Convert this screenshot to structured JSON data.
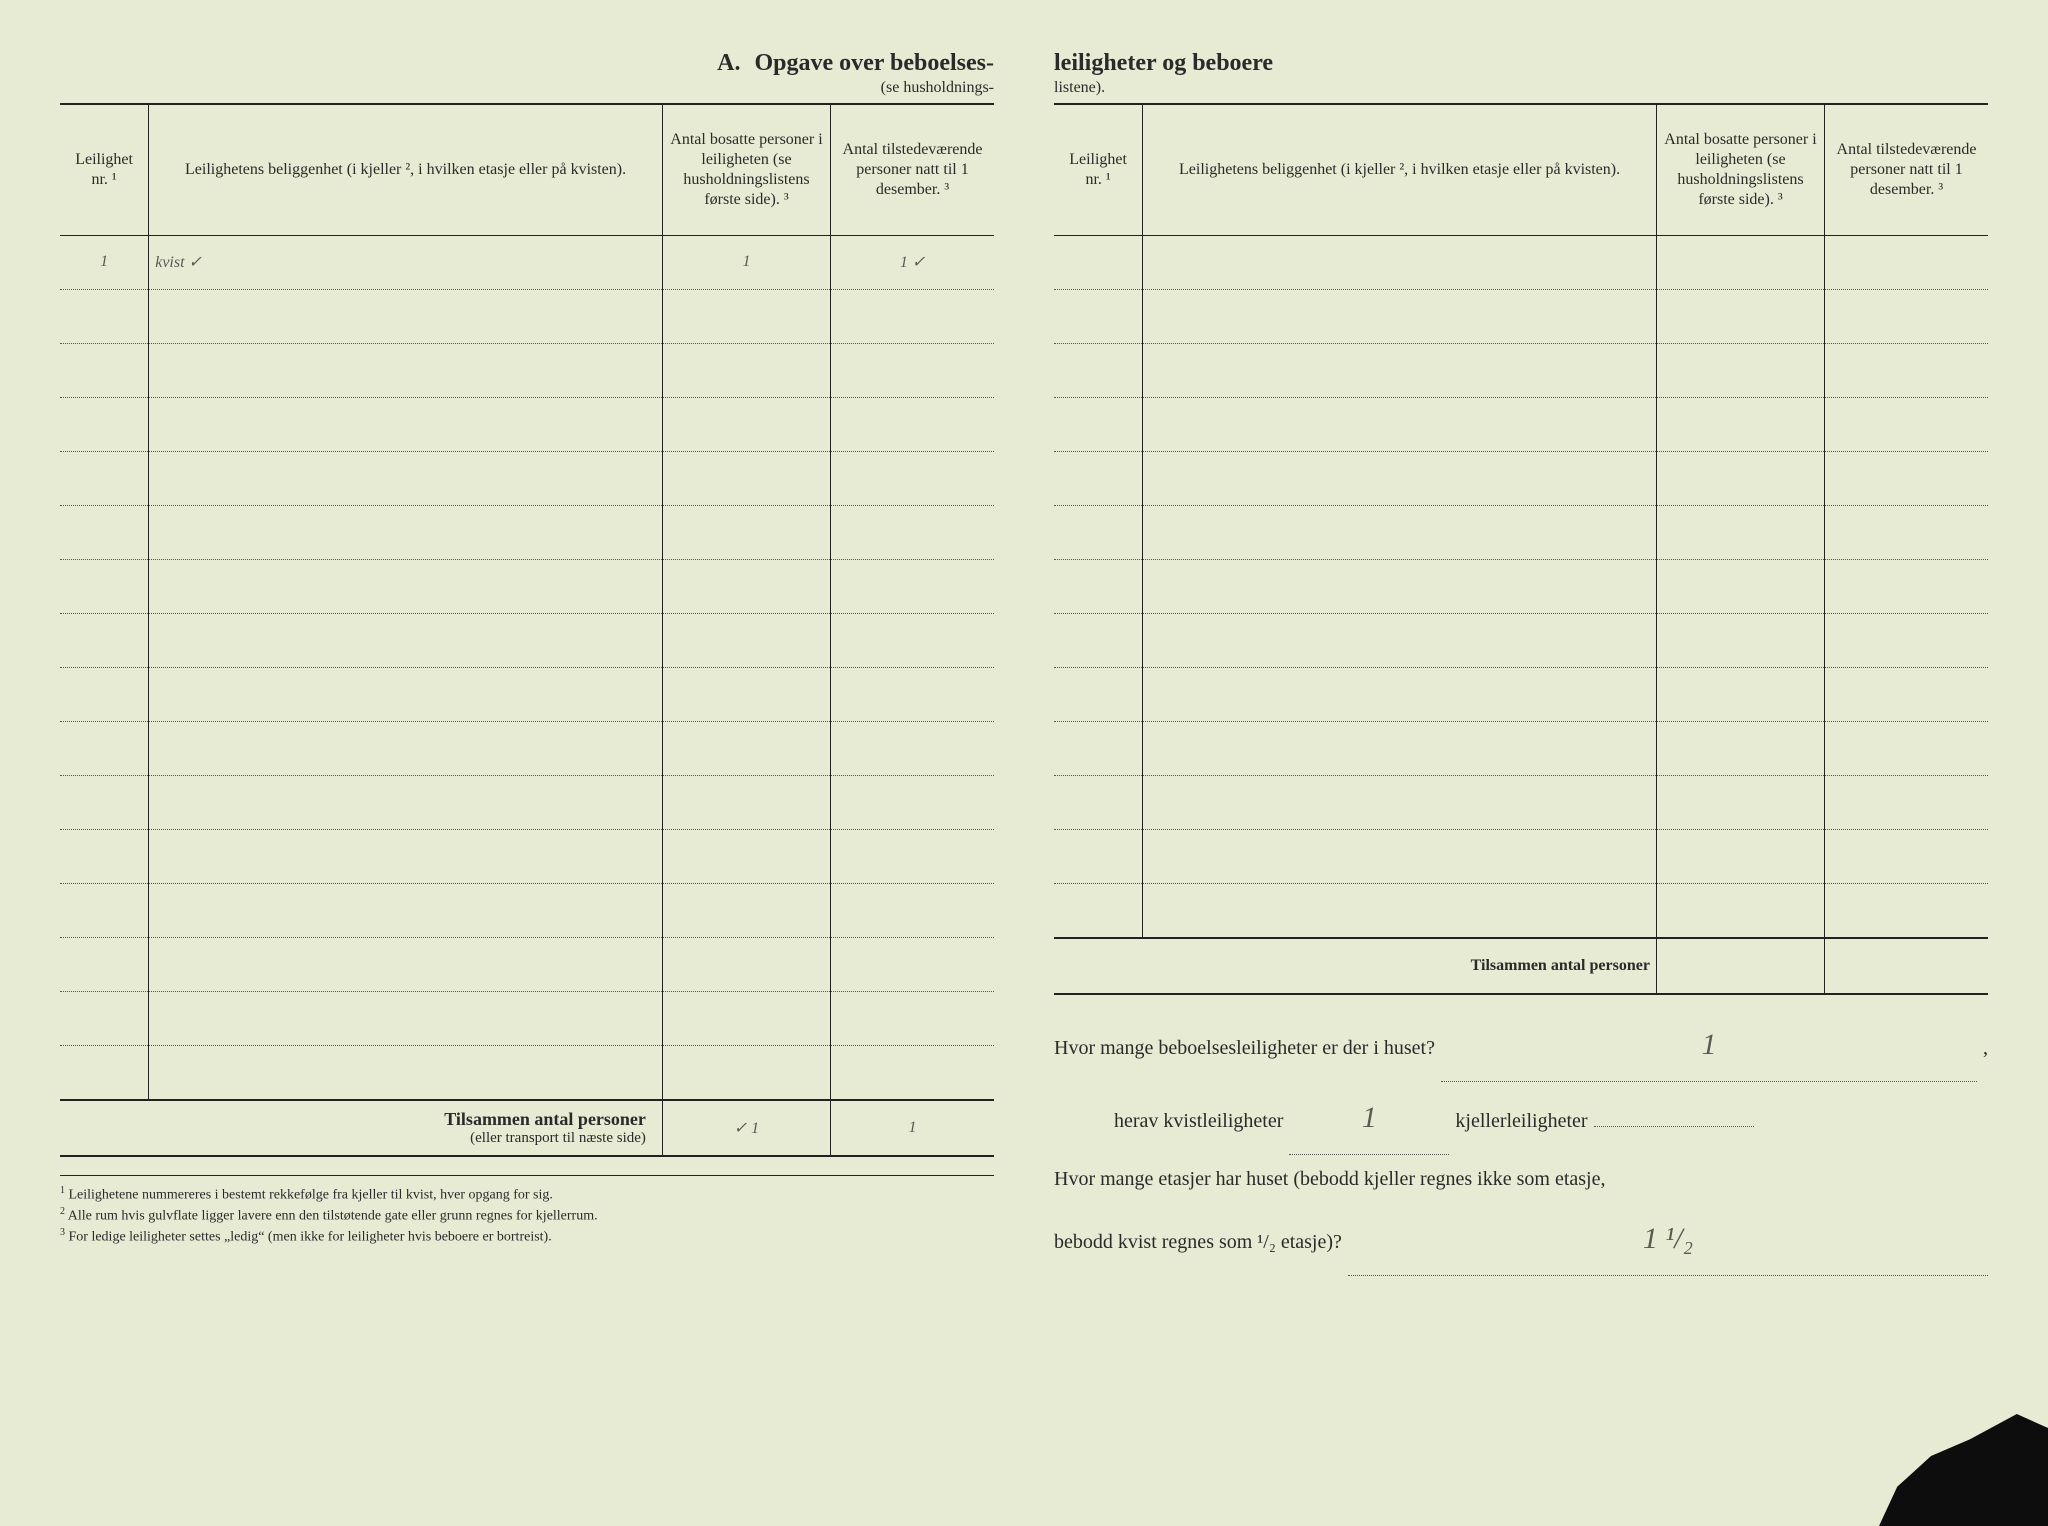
{
  "background_color": "#e8ebd4",
  "text_color": "#2a2a2a",
  "handwriting_color": "#5a5a52",
  "header": {
    "section_letter": "A.",
    "title_left": "Opgave over beboelses-",
    "title_right": "leiligheter og beboere",
    "subtitle_left": "(se husholdnings-",
    "subtitle_right": "listene)."
  },
  "columns": {
    "nr": "Leilighet nr. ¹",
    "loc": "Leilighetens beliggenhet (i kjeller ², i hvilken etasje eller på kvisten).",
    "a": "Antal bosatte personer i leiligheten (se husholdningslistens første side). ³",
    "b": "Antal tilstedeværende personer natt til 1 desember. ³"
  },
  "left_table": {
    "rows": [
      {
        "nr": "1",
        "loc": "kvist",
        "check": "✓",
        "a": "1",
        "b": "1 ✓"
      },
      {
        "nr": "",
        "loc": "",
        "check": "",
        "a": "",
        "b": ""
      },
      {
        "nr": "",
        "loc": "",
        "check": "",
        "a": "",
        "b": ""
      },
      {
        "nr": "",
        "loc": "",
        "check": "",
        "a": "",
        "b": ""
      },
      {
        "nr": "",
        "loc": "",
        "check": "",
        "a": "",
        "b": ""
      },
      {
        "nr": "",
        "loc": "",
        "check": "",
        "a": "",
        "b": ""
      },
      {
        "nr": "",
        "loc": "",
        "check": "",
        "a": "",
        "b": ""
      },
      {
        "nr": "",
        "loc": "",
        "check": "",
        "a": "",
        "b": ""
      },
      {
        "nr": "",
        "loc": "",
        "check": "",
        "a": "",
        "b": ""
      },
      {
        "nr": "",
        "loc": "",
        "check": "",
        "a": "",
        "b": ""
      },
      {
        "nr": "",
        "loc": "",
        "check": "",
        "a": "",
        "b": ""
      },
      {
        "nr": "",
        "loc": "",
        "check": "",
        "a": "",
        "b": ""
      },
      {
        "nr": "",
        "loc": "",
        "check": "",
        "a": "",
        "b": ""
      },
      {
        "nr": "",
        "loc": "",
        "check": "",
        "a": "",
        "b": ""
      },
      {
        "nr": "",
        "loc": "",
        "check": "",
        "a": "",
        "b": ""
      },
      {
        "nr": "",
        "loc": "",
        "check": "",
        "a": "",
        "b": ""
      }
    ],
    "total_label": "Tilsammen antal personer",
    "total_sublabel": "(eller transport til næste side)",
    "total_check": "✓",
    "total_a": "1",
    "total_b": "1"
  },
  "right_table": {
    "rows": [
      {
        "nr": "",
        "loc": "",
        "a": "",
        "b": ""
      },
      {
        "nr": "",
        "loc": "",
        "a": "",
        "b": ""
      },
      {
        "nr": "",
        "loc": "",
        "a": "",
        "b": ""
      },
      {
        "nr": "",
        "loc": "",
        "a": "",
        "b": ""
      },
      {
        "nr": "",
        "loc": "",
        "a": "",
        "b": ""
      },
      {
        "nr": "",
        "loc": "",
        "a": "",
        "b": ""
      },
      {
        "nr": "",
        "loc": "",
        "a": "",
        "b": ""
      },
      {
        "nr": "",
        "loc": "",
        "a": "",
        "b": ""
      },
      {
        "nr": "",
        "loc": "",
        "a": "",
        "b": ""
      },
      {
        "nr": "",
        "loc": "",
        "a": "",
        "b": ""
      },
      {
        "nr": "",
        "loc": "",
        "a": "",
        "b": ""
      },
      {
        "nr": "",
        "loc": "",
        "a": "",
        "b": ""
      },
      {
        "nr": "",
        "loc": "",
        "a": "",
        "b": ""
      }
    ],
    "total_label": "Tilsammen antal personer"
  },
  "footnotes": {
    "n1": "Leilighetene nummereres i bestemt rekkefølge fra kjeller til kvist, hver opgang for sig.",
    "n2": "Alle rum hvis gulvflate ligger lavere enn den tilstøtende gate eller grunn regnes for kjellerrum.",
    "n3": "For ledige leiligheter settes „ledig“ (men ikke for leiligheter hvis beboere er bortreist)."
  },
  "questions": {
    "q1_pre": "Hvor mange beboelsesleiligheter er der i huset?",
    "q1_val": "1",
    "q2_pre": "herav kvistleiligheter",
    "q2_val": "1",
    "q2_mid": "kjellerleiligheter",
    "q2_val2": "",
    "q3_pre": "Hvor mange etasjer har huset (bebodd kjeller regnes ikke som etasje,",
    "q3_cont": "bebodd kvist regnes som ¹/₂ etasje)?",
    "q3_val": "1 ¹/₂"
  }
}
